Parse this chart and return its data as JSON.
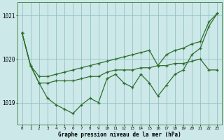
{
  "hours": [
    0,
    1,
    2,
    3,
    4,
    5,
    6,
    7,
    8,
    9,
    10,
    11,
    12,
    13,
    14,
    15,
    16,
    17,
    18,
    19,
    20,
    21,
    22,
    23
  ],
  "curve_top": [
    1020.6,
    1019.85,
    1019.6,
    1019.6,
    1019.65,
    1019.7,
    1019.75,
    1019.8,
    1019.85,
    1019.9,
    1019.95,
    1020.0,
    1020.05,
    1020.1,
    1020.15,
    1020.2,
    1019.85,
    1020.1,
    1020.2,
    1020.25,
    1020.35,
    1020.4,
    1020.85,
    1021.05
  ],
  "curve_low": [
    1020.6,
    1019.85,
    1019.45,
    1019.1,
    1018.95,
    1018.85,
    1018.75,
    1018.95,
    1019.1,
    1019.0,
    1019.55,
    1019.65,
    1019.45,
    1019.35,
    1019.65,
    1019.45,
    1019.15,
    1019.4,
    1019.65,
    1019.75,
    1020.1,
    1020.25,
    1020.75,
    1021.05
  ],
  "curve_mid": [
    1020.6,
    1019.85,
    1019.45,
    1019.45,
    1019.5,
    1019.5,
    1019.5,
    1019.55,
    1019.6,
    1019.6,
    1019.7,
    1019.75,
    1019.75,
    1019.75,
    1019.8,
    1019.8,
    1019.85,
    1019.85,
    1019.9,
    1019.9,
    1019.95,
    1020.0,
    1019.75,
    1019.75
  ],
  "ylim": [
    1018.5,
    1021.3
  ],
  "yticks": [
    1019,
    1020,
    1021
  ],
  "xlim": [
    -0.5,
    23.5
  ],
  "bg_color": "#cce8e8",
  "grid_color": "#88bbbb",
  "line_color": "#2d6e2d",
  "xlabel": "Graphe pression niveau de la mer (hPa)"
}
